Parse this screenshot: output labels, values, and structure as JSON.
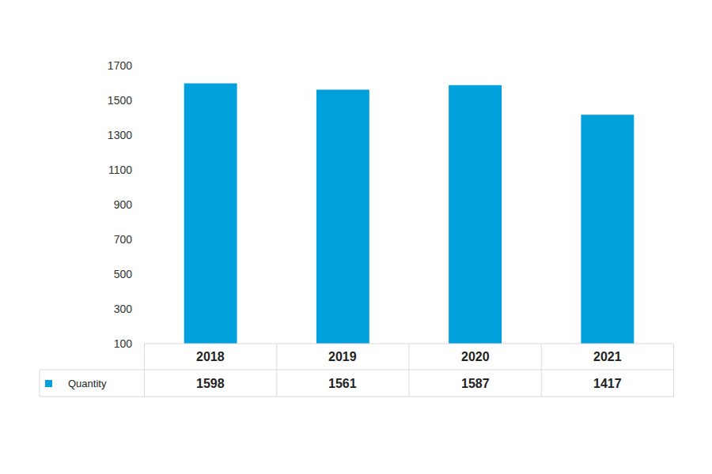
{
  "chart_data": {
    "type": "bar",
    "categories": [
      "2018",
      "2019",
      "2020",
      "2021"
    ],
    "series": [
      {
        "name": "Quantity",
        "color": "#00a0dc",
        "values": [
          1598,
          1561,
          1587,
          1417
        ]
      }
    ],
    "ylim": [
      100,
      1700
    ],
    "yticks": [
      100,
      300,
      500,
      700,
      900,
      1100,
      1300,
      1500,
      1700
    ],
    "grid": false,
    "data_labels": true
  }
}
